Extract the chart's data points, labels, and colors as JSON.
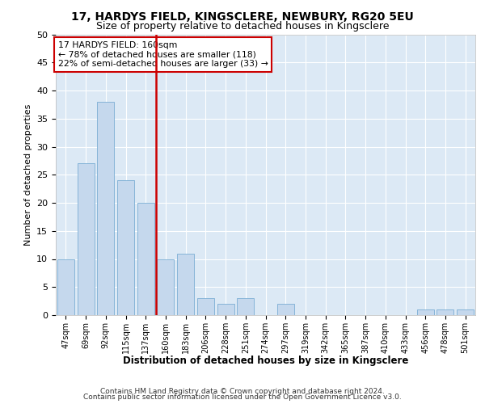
{
  "title1": "17, HARDYS FIELD, KINGSCLERE, NEWBURY, RG20 5EU",
  "title2": "Size of property relative to detached houses in Kingsclere",
  "xlabel": "Distribution of detached houses by size in Kingsclere",
  "ylabel": "Number of detached properties",
  "categories": [
    "47sqm",
    "69sqm",
    "92sqm",
    "115sqm",
    "137sqm",
    "160sqm",
    "183sqm",
    "206sqm",
    "228sqm",
    "251sqm",
    "274sqm",
    "297sqm",
    "319sqm",
    "342sqm",
    "365sqm",
    "387sqm",
    "410sqm",
    "433sqm",
    "456sqm",
    "478sqm",
    "501sqm"
  ],
  "values": [
    10,
    27,
    38,
    24,
    20,
    10,
    11,
    3,
    2,
    3,
    0,
    2,
    0,
    0,
    0,
    0,
    0,
    0,
    1,
    1,
    1
  ],
  "bar_color": "#c5d8ed",
  "bar_edge_color": "#7aadd4",
  "highlight_index": 5,
  "highlight_line_color": "#cc0000",
  "annotation_title": "17 HARDYS FIELD: 160sqm",
  "annotation_line1": "← 78% of detached houses are smaller (118)",
  "annotation_line2": "22% of semi-detached houses are larger (33) →",
  "ylim": [
    0,
    50
  ],
  "yticks": [
    0,
    5,
    10,
    15,
    20,
    25,
    30,
    35,
    40,
    45,
    50
  ],
  "plot_bg_color": "#dce9f5",
  "footer1": "Contains HM Land Registry data © Crown copyright and database right 2024.",
  "footer2": "Contains public sector information licensed under the Open Government Licence v3.0."
}
